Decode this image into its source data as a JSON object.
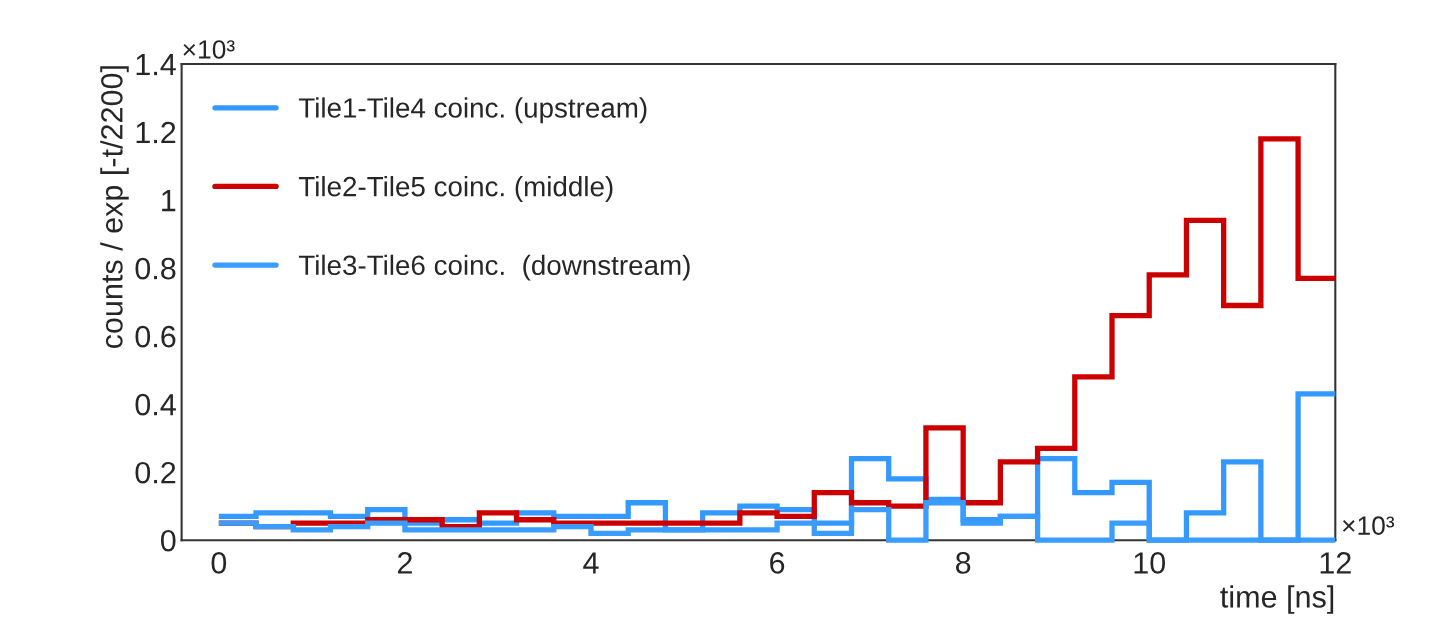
{
  "chart_data": {
    "type": "histogram",
    "xlabel": "time [ns]",
    "ylabel": "counts / exp [-t/2200]",
    "bins": [
      0,
      0.4,
      0.8,
      1.2,
      1.6,
      2.0,
      2.4,
      2.8,
      3.2,
      3.6,
      4.0,
      4.4,
      4.8,
      5.2,
      5.6,
      6.0,
      6.4,
      6.8,
      7.2,
      7.6,
      8.0,
      8.4,
      8.8,
      9.2,
      9.6,
      10.0,
      10.4,
      10.8,
      11.2,
      11.6,
      12.0
    ],
    "series": [
      {
        "name": "Tile1-Tile4 coinc. (upstream)",
        "color": "#3399ff",
        "values": [
          0.07,
          0.08,
          0.08,
          0.07,
          0.09,
          0.05,
          0.06,
          0.05,
          0.08,
          0.07,
          0.07,
          0.11,
          0.03,
          0.08,
          0.1,
          0.09,
          0.05,
          0.24,
          0.18,
          0.12,
          0.06,
          0.07,
          0.24,
          0.14,
          0.17,
          0,
          0.08,
          0.23,
          0,
          0.43
        ]
      },
      {
        "name": "Tile2-Tile5 coinc. (middle)",
        "color": "#cc0000",
        "values": [
          0.05,
          0.04,
          0.05,
          0.05,
          0.06,
          0.06,
          0.04,
          0.08,
          0.06,
          0.05,
          0.05,
          0.05,
          0.05,
          0.05,
          0.08,
          0.07,
          0.14,
          0.11,
          0.1,
          0.33,
          0.11,
          0.23,
          0.27,
          0.48,
          0.66,
          0.78,
          0.94,
          0.69,
          1.18,
          0.77
        ]
      },
      {
        "name": "Tile3-Tile6 coinc.  (downstream)",
        "color": "#3a9cfc",
        "values": [
          0.05,
          0.04,
          0.03,
          0.04,
          0.05,
          0.03,
          0.03,
          0.03,
          0.03,
          0.04,
          0.02,
          0.03,
          0.03,
          0.03,
          0.03,
          0.05,
          0.02,
          0.09,
          0,
          0.11,
          0.05,
          0.07,
          0,
          0,
          0.05,
          0,
          0,
          0,
          0,
          0
        ]
      }
    ],
    "xlim": [
      -0.4,
      12
    ],
    "xticks": [
      0,
      2,
      4,
      6,
      8,
      10,
      12
    ],
    "ylim": [
      0,
      1.4
    ],
    "yticks": [
      0,
      0.2,
      0.4,
      0.6,
      0.8,
      1,
      1.2,
      1.4
    ],
    "annotations": [
      "×10³",
      "×10³"
    ],
    "legend": "top left",
    "grid": false
  }
}
